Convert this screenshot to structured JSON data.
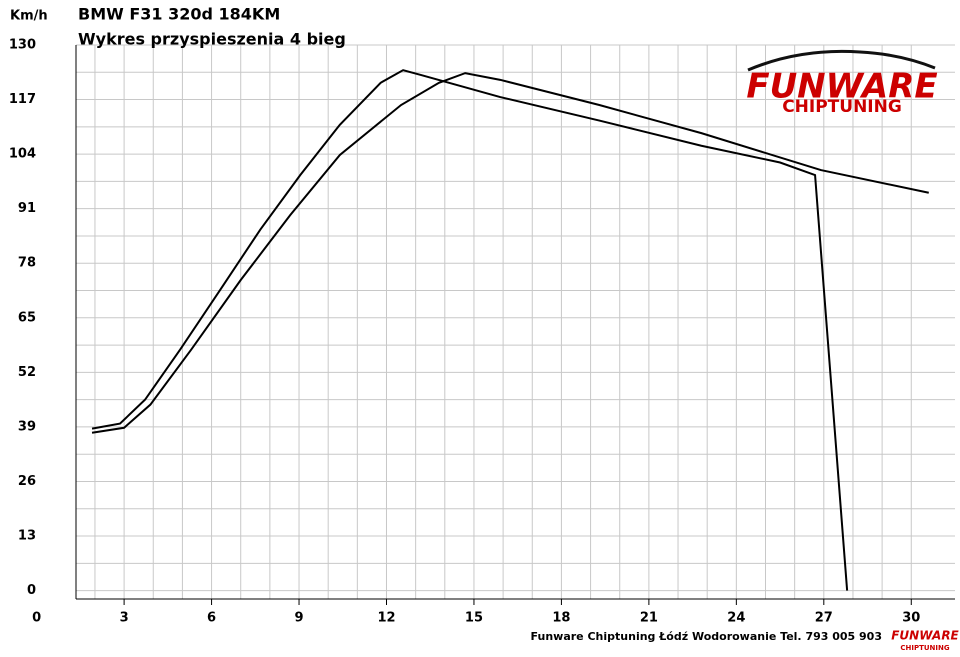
{
  "chart_data": {
    "type": "line",
    "title": "BMW F31 320d 184KM",
    "subtitle": "Wykres przyspieszenia 4 bieg",
    "y_label": "Km/h",
    "footer": "Funware Chiptuning Łódź Wodorowanie Tel. 793 005 903",
    "logo": {
      "name": "FUNWARE",
      "tagline": "CHIPTUNING"
    },
    "xlim": [
      1.35,
      31.5
    ],
    "ylim": [
      -2,
      130
    ],
    "xticks": [
      0,
      3,
      6,
      9,
      12,
      15,
      18,
      21,
      24,
      27,
      30
    ],
    "yticks": [
      0,
      13,
      26,
      39,
      52,
      65,
      78,
      91,
      104,
      117,
      130
    ],
    "grid": true,
    "series": [
      {
        "color": "#000000",
        "x": [
          1.9,
          2.86,
          3.72,
          4.92,
          6.3,
          7.67,
          9.04,
          10.4,
          11.8,
          12.57,
          13.16,
          15.9,
          19.3,
          22.8,
          25.5,
          26.7,
          27.8
        ],
        "values": [
          38.6,
          39.8,
          45.5,
          57.4,
          71.7,
          86,
          99,
          111,
          121,
          124,
          122.9,
          117.6,
          112,
          106,
          102,
          99,
          0
        ]
      },
      {
        "color": "#000000",
        "x": [
          1.9,
          3.0,
          3.9,
          5.3,
          7.0,
          8.7,
          10.4,
          12.5,
          13.8,
          14.7,
          15.9,
          19.3,
          22.8,
          26.9,
          30.6
        ],
        "values": [
          37.6,
          38.8,
          44.3,
          57.4,
          74,
          89.5,
          103.8,
          115.7,
          121,
          123.3,
          121.7,
          115.7,
          109,
          100.2,
          94.8
        ]
      }
    ]
  }
}
